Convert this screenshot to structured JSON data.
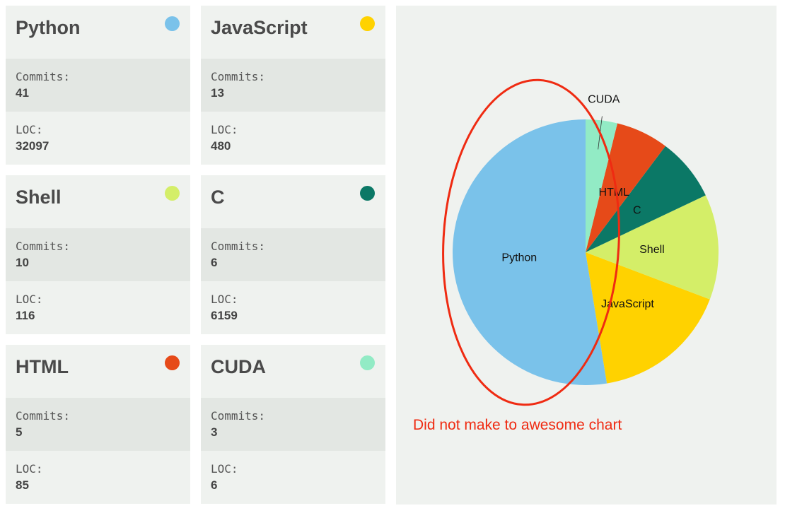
{
  "chart_data": {
    "type": "pie",
    "title": "",
    "series": [
      {
        "label": "Python",
        "commits": 41,
        "loc": 32097,
        "color": "#7ac2ea"
      },
      {
        "label": "JavaScript",
        "commits": 13,
        "loc": 480,
        "color": "#ffd200"
      },
      {
        "label": "Shell",
        "commits": 10,
        "loc": 116,
        "color": "#d4ee68"
      },
      {
        "label": "C",
        "commits": 6,
        "loc": 6159,
        "color": "#0b7866"
      },
      {
        "label": "HTML",
        "commits": 5,
        "loc": 85,
        "color": "#e64a19"
      },
      {
        "label": "CUDA",
        "commits": 3,
        "loc": 6,
        "color": "#92ebc5"
      }
    ],
    "value_field": "commits"
  },
  "labels": {
    "commits": "Commits:",
    "loc": "LOC:"
  },
  "annotation": {
    "text": "Did not make to awesome chart",
    "color": "#ef2b12"
  }
}
